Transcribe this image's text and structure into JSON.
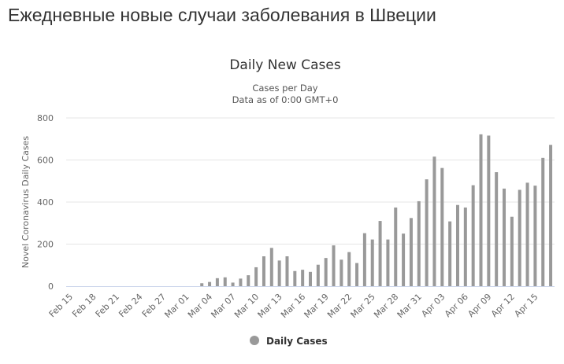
{
  "page": {
    "heading": "Ежедневные новые случаи заболевания в Швеции"
  },
  "chart_data": {
    "type": "bar",
    "title": "Daily New Cases",
    "subtitle": "Cases per Day",
    "subtitle2": "Data as of 0:00 GMT+0",
    "xlabel": "",
    "ylabel": "Novel Coronavirus Daily Cases",
    "ylim": [
      0,
      800
    ],
    "yticks": [
      0,
      200,
      400,
      600,
      800
    ],
    "grid": true,
    "legend_position": "bottom-center",
    "colors": {
      "bar": "#999999",
      "grid": "#e6e6e6",
      "axis_text": "#666666"
    },
    "categories": [
      "Feb 15",
      "Feb 16",
      "Feb 17",
      "Feb 18",
      "Feb 19",
      "Feb 20",
      "Feb 21",
      "Feb 22",
      "Feb 23",
      "Feb 24",
      "Feb 25",
      "Feb 26",
      "Feb 27",
      "Feb 28",
      "Feb 29",
      "Mar 01",
      "Mar 02",
      "Mar 03",
      "Mar 04",
      "Mar 05",
      "Mar 06",
      "Mar 07",
      "Mar 08",
      "Mar 09",
      "Mar 10",
      "Mar 11",
      "Mar 12",
      "Mar 13",
      "Mar 14",
      "Mar 15",
      "Mar 16",
      "Mar 17",
      "Mar 18",
      "Mar 19",
      "Mar 20",
      "Mar 21",
      "Mar 22",
      "Mar 23",
      "Mar 24",
      "Mar 25",
      "Mar 26",
      "Mar 27",
      "Mar 28",
      "Mar 29",
      "Mar 30",
      "Mar 31",
      "Apr 01",
      "Apr 02",
      "Apr 03",
      "Apr 04",
      "Apr 05",
      "Apr 06",
      "Apr 07",
      "Apr 08",
      "Apr 09",
      "Apr 10",
      "Apr 11",
      "Apr 12",
      "Apr 13",
      "Apr 14",
      "Apr 15",
      "Apr 16",
      "Apr 17"
    ],
    "tick_labels": [
      "Feb 15",
      "Feb 18",
      "Feb 21",
      "Feb 24",
      "Feb 27",
      "Mar 01",
      "Mar 04",
      "Mar 07",
      "Mar 10",
      "Mar 13",
      "Mar 16",
      "Mar 19",
      "Mar 22",
      "Mar 25",
      "Mar 28",
      "Mar 31",
      "Apr 03",
      "Apr 06",
      "Apr 09",
      "Apr 12",
      "Apr 15"
    ],
    "series": [
      {
        "name": "Daily Cases",
        "values": [
          0,
          0,
          0,
          0,
          0,
          0,
          0,
          0,
          0,
          0,
          0,
          0,
          0,
          0,
          0,
          0,
          0,
          14,
          20,
          38,
          42,
          17,
          36,
          52,
          90,
          142,
          182,
          122,
          142,
          72,
          78,
          68,
          102,
          134,
          194,
          126,
          162,
          110,
          252,
          222,
          310,
          222,
          374,
          250,
          324,
          404,
          508,
          616,
          562,
          308,
          386,
          374,
          480,
          722,
          716,
          542,
          464,
          330,
          458,
          492,
          478,
          610,
          672
        ]
      }
    ]
  }
}
